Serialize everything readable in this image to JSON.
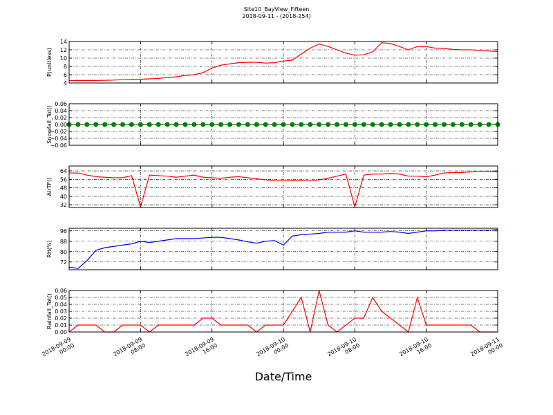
{
  "chart_data": {
    "type": "line",
    "title": "Site10_BayView_Fifteen",
    "subtitle": "2018-09-11 - (2018-254)",
    "xlabel": "Date/Time",
    "grid": true,
    "x": [
      "2018-09-09 00:00",
      "2018-09-09 01:00",
      "2018-09-09 02:00",
      "2018-09-09 03:00",
      "2018-09-09 04:00",
      "2018-09-09 05:00",
      "2018-09-09 06:00",
      "2018-09-09 07:00",
      "2018-09-09 08:00",
      "2018-09-09 09:00",
      "2018-09-09 10:00",
      "2018-09-09 11:00",
      "2018-09-09 12:00",
      "2018-09-09 13:00",
      "2018-09-09 14:00",
      "2018-09-09 15:00",
      "2018-09-09 16:00",
      "2018-09-09 17:00",
      "2018-09-09 18:00",
      "2018-09-09 19:00",
      "2018-09-09 20:00",
      "2018-09-09 21:00",
      "2018-09-09 22:00",
      "2018-09-09 23:00",
      "2018-09-10 00:00",
      "2018-09-10 01:00",
      "2018-09-10 02:00",
      "2018-09-10 03:00",
      "2018-09-10 04:00",
      "2018-09-10 05:00",
      "2018-09-10 06:00",
      "2018-09-10 07:00",
      "2018-09-10 08:00",
      "2018-09-10 09:00",
      "2018-09-10 10:00",
      "2018-09-10 11:00",
      "2018-09-10 12:00",
      "2018-09-10 13:00",
      "2018-09-10 14:00",
      "2018-09-10 15:00",
      "2018-09-10 16:00",
      "2018-09-10 17:00",
      "2018-09-10 18:00",
      "2018-09-10 19:00",
      "2018-09-10 20:00",
      "2018-09-10 21:00",
      "2018-09-10 22:00",
      "2018-09-10 23:00",
      "2018-09-11 00:00"
    ],
    "xlim": [
      "2018-09-09 00:00",
      "2018-09-11 00:00"
    ],
    "xticks": [
      {
        "value": "2018-09-09 00:00",
        "label": "2018-09-09\n00:00"
      },
      {
        "value": "2018-09-09 08:00",
        "label": "2018-09-09\n08:00"
      },
      {
        "value": "2018-09-09 16:00",
        "label": "2018-09-09\n16:00"
      },
      {
        "value": "2018-09-10 00:00",
        "label": "2018-09-10\n00:00"
      },
      {
        "value": "2018-09-10 08:00",
        "label": "2018-09-10\n08:00"
      },
      {
        "value": "2018-09-10 16:00",
        "label": "2018-09-10\n16:00"
      },
      {
        "value": "2018-09-11 00:00",
        "label": "2018-09-11\n00:00"
      }
    ],
    "panels": [
      {
        "ylabel": "P(unitless)",
        "color": "#ff0000",
        "ylim": [
          4,
          14
        ],
        "yticks": [
          4,
          6,
          8,
          10,
          12,
          14
        ],
        "values": [
          4.6,
          4.6,
          4.6,
          4.6,
          4.65,
          4.7,
          4.8,
          4.85,
          4.9,
          5.0,
          5.1,
          5.3,
          5.5,
          5.8,
          6.0,
          6.5,
          7.6,
          8.3,
          8.6,
          8.9,
          9.0,
          9.0,
          8.8,
          8.9,
          9.3,
          9.5,
          11.0,
          12.4,
          13.4,
          12.8,
          12.0,
          11.2,
          10.7,
          10.8,
          11.5,
          13.7,
          13.5,
          12.8,
          12.0,
          12.8,
          12.8,
          12.4,
          12.3,
          12.1,
          12.0,
          12.0,
          11.8,
          11.7,
          11.6
        ]
      },
      {
        "ylabel": "Snowfall_Tot()",
        "color": "#008000",
        "marker": "o",
        "ylim": [
          -0.06,
          0.06
        ],
        "yticks": [
          {
            "value": -0.06,
            "label": "−0.06"
          },
          {
            "value": -0.04,
            "label": "−0.04"
          },
          {
            "value": -0.02,
            "label": "−0.02"
          },
          {
            "value": 0,
            "label": "0.00"
          },
          0.02,
          0.04,
          0.06
        ],
        "values": [
          0,
          0,
          0,
          0,
          0,
          0,
          0,
          0,
          0,
          0,
          0,
          0,
          0,
          0,
          0,
          0,
          0,
          0,
          0,
          0,
          0,
          0,
          0,
          0,
          0,
          0,
          0,
          0,
          0,
          0,
          0,
          0,
          0,
          0,
          0,
          0,
          0,
          0,
          0,
          0,
          0,
          0,
          0,
          0,
          0,
          0,
          0,
          0,
          0
        ]
      },
      {
        "ylabel": "AirTF()",
        "color": "#ff0000",
        "ylim": [
          29.4,
          68.6
        ],
        "yticks": [
          32,
          40,
          48,
          56,
          64
        ],
        "values": [
          62,
          62,
          60,
          58.5,
          58,
          57.5,
          57.5,
          59.5,
          30,
          60,
          59.5,
          59,
          58,
          59,
          60,
          58,
          57.5,
          57,
          58,
          58.5,
          57.5,
          56.5,
          55.5,
          55,
          54.5,
          55,
          55,
          54.5,
          55.5,
          57,
          59,
          61,
          30,
          60,
          61,
          61,
          61.5,
          61,
          59,
          59,
          58.5,
          60,
          62,
          62.5,
          62.5,
          63,
          63.5,
          63.5,
          63
        ]
      },
      {
        "ylabel": "RH(%)",
        "color": "#0000ff",
        "ylim": [
          66,
          98
        ],
        "yticks": [
          72,
          80,
          88,
          96
        ],
        "values": [
          68,
          67,
          73,
          81,
          83,
          84,
          85,
          86,
          88,
          87,
          88,
          89,
          90,
          90,
          90,
          90.5,
          91,
          91,
          90,
          89,
          87.5,
          86.5,
          88,
          88.5,
          85,
          92,
          93,
          93.5,
          94,
          95,
          95,
          95,
          96,
          95,
          95,
          95,
          95.5,
          95,
          94,
          95,
          96,
          96,
          96.5,
          96.5,
          96.5,
          96.5,
          96.5,
          96.5,
          97
        ]
      },
      {
        "ylabel": "Rainfall_Tot()",
        "color": "#ff0000",
        "ylim": [
          0,
          0.06
        ],
        "yticks": [
          {
            "value": 0,
            "label": "0.00"
          },
          0.01,
          0.02,
          0.03,
          0.04,
          0.05,
          0.06
        ],
        "values": [
          0,
          0.01,
          0.01,
          0.01,
          0,
          0,
          0.01,
          0.01,
          0.01,
          0,
          0.01,
          0.01,
          0.01,
          0.01,
          0.01,
          0.02,
          0.02,
          0.01,
          0.01,
          0.01,
          0.01,
          0,
          0.01,
          0.01,
          0.01,
          0.03,
          0.05,
          0,
          0.06,
          0.01,
          0,
          0.01,
          0.02,
          0.02,
          0.05,
          0.03,
          0.02,
          0.01,
          0,
          0.05,
          0.01,
          0.01,
          0.01,
          0.01,
          0.01,
          0.01,
          0,
          0,
          0
        ]
      }
    ]
  }
}
